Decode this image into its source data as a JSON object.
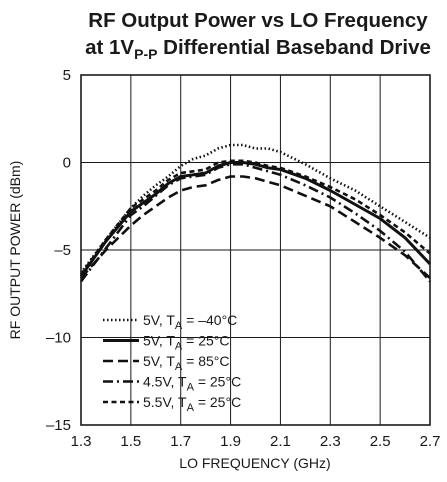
{
  "chart_data": {
    "type": "line",
    "title": {
      "line1": "RF Output Power vs LO Frequency",
      "line2_prefix": "at 1V",
      "line2_sub": "P-P",
      "line2_suffix": " Differential Baseband Drive"
    },
    "xlabel": "LO FREQUENCY (GHz)",
    "ylabel": "RF OUTPUT POWER (dBm)",
    "xlim": [
      1.3,
      2.7
    ],
    "ylim": [
      -15,
      5
    ],
    "xticks": [
      1.3,
      1.5,
      1.7,
      1.9,
      2.1,
      2.3,
      2.5,
      2.7
    ],
    "xtick_labels": [
      "1.3",
      "1.5",
      "1.7",
      "1.9",
      "2.1",
      "2.3",
      "2.5",
      "2.7"
    ],
    "yticks": [
      -15,
      -10,
      -5,
      0,
      5
    ],
    "ytick_labels": [
      "–15",
      "–10",
      "–5",
      "0",
      "5"
    ],
    "grid": true,
    "legend_position": "bottom-left",
    "series": [
      {
        "legend": {
          "prefix": "5V, T",
          "sub": "A",
          "suffix": " = –40°C"
        },
        "style": "dotted",
        "x": [
          1.3,
          1.4,
          1.5,
          1.55,
          1.6,
          1.65,
          1.7,
          1.75,
          1.8,
          1.85,
          1.9,
          1.95,
          2.0,
          2.05,
          2.1,
          2.2,
          2.3,
          2.4,
          2.5,
          2.6,
          2.7
        ],
        "y": [
          -6.3,
          -4.4,
          -2.6,
          -1.9,
          -1.3,
          -0.8,
          -0.2,
          0.2,
          0.4,
          0.8,
          1.0,
          1.0,
          0.8,
          0.8,
          0.6,
          -0.1,
          -0.9,
          -1.6,
          -2.5,
          -3.4,
          -4.3
        ]
      },
      {
        "legend": {
          "prefix": "5V, T",
          "sub": "A",
          "suffix": " = 25°C"
        },
        "style": "solid",
        "x": [
          1.3,
          1.4,
          1.5,
          1.55,
          1.6,
          1.65,
          1.7,
          1.75,
          1.8,
          1.85,
          1.9,
          1.95,
          2.0,
          2.05,
          2.1,
          2.2,
          2.3,
          2.4,
          2.5,
          2.6,
          2.7
        ],
        "y": [
          -6.5,
          -4.5,
          -2.8,
          -2.3,
          -1.8,
          -1.2,
          -0.8,
          -0.7,
          -0.6,
          -0.2,
          0.0,
          0.0,
          -0.1,
          -0.3,
          -0.4,
          -0.9,
          -1.6,
          -2.4,
          -3.2,
          -4.3,
          -5.8
        ]
      },
      {
        "legend": {
          "prefix": "5V, T",
          "sub": "A",
          "suffix": " = 85°C"
        },
        "style": "dashed",
        "x": [
          1.3,
          1.4,
          1.5,
          1.55,
          1.6,
          1.65,
          1.7,
          1.75,
          1.8,
          1.85,
          1.9,
          1.95,
          2.0,
          2.05,
          2.1,
          2.2,
          2.3,
          2.4,
          2.5,
          2.6,
          2.7
        ],
        "y": [
          -6.6,
          -5.0,
          -3.6,
          -3.0,
          -2.5,
          -2.0,
          -1.6,
          -1.4,
          -1.3,
          -1.0,
          -0.8,
          -0.8,
          -0.9,
          -1.1,
          -1.3,
          -1.9,
          -2.5,
          -3.4,
          -4.3,
          -5.3,
          -6.6
        ]
      },
      {
        "legend": {
          "prefix": "4.5V, T",
          "sub": "A",
          "suffix": " = 25°C"
        },
        "style": "dashdot",
        "x": [
          1.3,
          1.4,
          1.5,
          1.55,
          1.6,
          1.65,
          1.7,
          1.75,
          1.8,
          1.85,
          1.9,
          1.95,
          2.0,
          2.05,
          2.1,
          2.2,
          2.3,
          2.4,
          2.5,
          2.6,
          2.7
        ],
        "y": [
          -6.8,
          -4.9,
          -3.0,
          -2.5,
          -1.9,
          -1.3,
          -0.9,
          -0.8,
          -0.7,
          -0.3,
          -0.1,
          -0.1,
          -0.3,
          -0.5,
          -0.7,
          -1.3,
          -2.0,
          -2.9,
          -3.9,
          -5.1,
          -6.8
        ]
      },
      {
        "legend": {
          "prefix": "5.5V, T",
          "sub": "A",
          "suffix": " = 25°C"
        },
        "style": "shortdash",
        "x": [
          1.3,
          1.4,
          1.5,
          1.55,
          1.6,
          1.65,
          1.7,
          1.75,
          1.8,
          1.85,
          1.9,
          1.95,
          2.0,
          2.05,
          2.1,
          2.2,
          2.3,
          2.4,
          2.5,
          2.6,
          2.7
        ],
        "y": [
          -6.4,
          -4.4,
          -2.6,
          -2.1,
          -1.6,
          -1.0,
          -0.6,
          -0.5,
          -0.4,
          0.0,
          0.1,
          0.1,
          0.0,
          -0.2,
          -0.3,
          -0.8,
          -1.4,
          -2.1,
          -3.0,
          -4.0,
          -5.2
        ]
      }
    ]
  }
}
